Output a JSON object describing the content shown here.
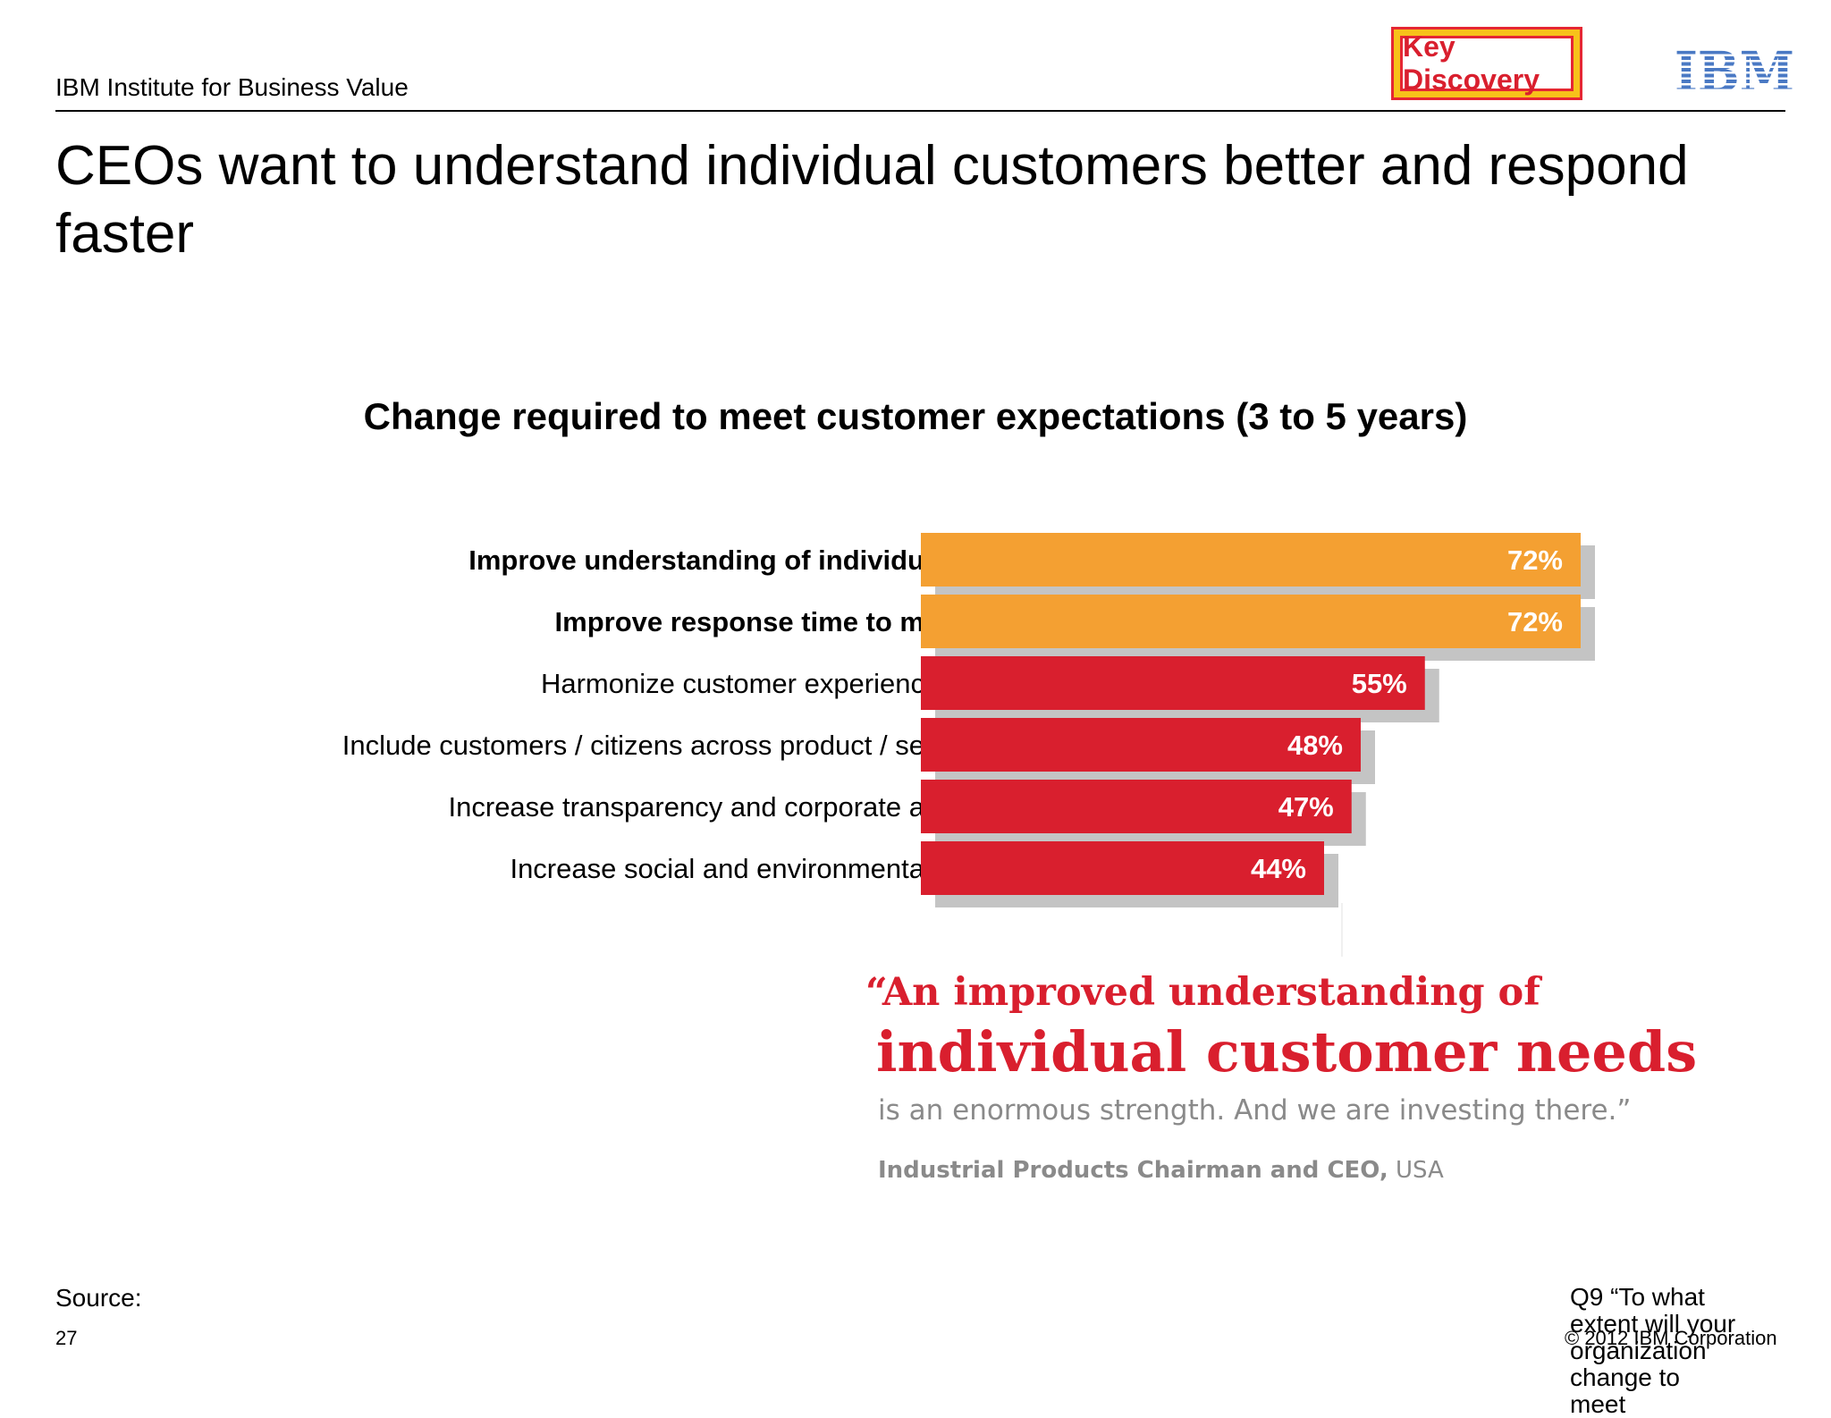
{
  "header": {
    "org": "IBM Institute for Business Value",
    "badge": "Key Discovery",
    "logo": "IBM"
  },
  "slide_title": "CEOs want to understand individual customers better and respond faster",
  "chart_data": {
    "type": "bar",
    "orientation": "horizontal",
    "title": "Change required to meet customer expectations (3 to 5 years)",
    "categories": [
      "Improve understanding of individu",
      "Improve response time to m",
      "Harmonize customer experienc",
      "Include customers / citizens across product / se",
      "Increase transparency and corporate a",
      "Increase social and environmenta"
    ],
    "values": [
      72,
      72,
      55,
      48,
      47,
      44
    ],
    "value_labels": [
      "72%",
      "72%",
      "55%",
      "48%",
      "47%",
      "44%"
    ],
    "highlighted": [
      true,
      true,
      false,
      false,
      false,
      false
    ],
    "colors": {
      "highlight": "#f4a032",
      "normal": "#d91f2e",
      "shadow": "#c4c4c4"
    },
    "xlim": [
      0,
      100
    ],
    "grid": false,
    "legend": "none"
  },
  "quote": {
    "line1": "“An improved understanding of",
    "line2": "individual customer needs",
    "line3": "is an enormous strength. And we are investing there.”",
    "attribution_role": "Industrial Products Chairman and CEO,",
    "attribution_country": " USA"
  },
  "footer": {
    "source_label": "Source:",
    "page_number": "27",
    "question": "Q9 “To what extent will your organization change to meet",
    "copyright": "© 2012 IBM Corporation"
  }
}
